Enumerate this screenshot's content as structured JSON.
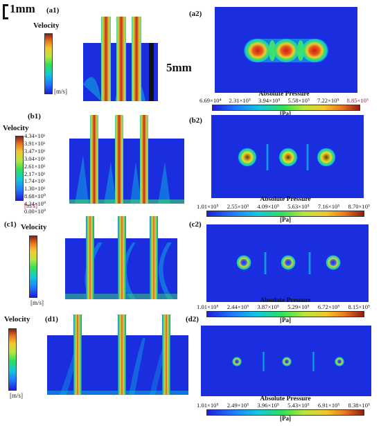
{
  "scale": {
    "bar_label": "1mm",
    "dimension_label": "5mm"
  },
  "rows": [
    {
      "left_label": "(a1)",
      "right_label": "(a2)",
      "velocity_title": "Velocity",
      "velocity_unit": "[m/s]",
      "velocity_ticks": [],
      "pressure_title": "Absolute Pressure",
      "pressure_unit": "[Pa]",
      "pressure_ticks": [
        "6.69×10⁴",
        "2.31×10⁵",
        "3.94×10⁵",
        "5.58×10⁵",
        "7.22×10⁵",
        "8.85×10⁵"
      ]
    },
    {
      "left_label": "(b1)",
      "right_label": "(b2)",
      "velocity_title": "Velocity",
      "velocity_unit": "[m/s]",
      "velocity_ticks": [
        "4.34×10¹",
        "3.91×10¹",
        "3.47×10¹",
        "3.04×10¹",
        "2.61×10¹",
        "2.17×10¹",
        "1.74×10¹",
        "1.30×10¹",
        "8.68×10⁰",
        "4.34×10⁰",
        "0.00×10⁰"
      ],
      "pressure_title": "Absolute Pressure",
      "pressure_unit": "[Pa]",
      "pressure_ticks": [
        "1.01×10⁵",
        "2.55×10⁵",
        "4.09×10⁵",
        "5.63×10⁵",
        "7.16×10⁵",
        "8.70×10⁵"
      ]
    },
    {
      "left_label": "(c1)",
      "right_label": "(c2)",
      "velocity_title": "Velocity",
      "velocity_unit": "[m/s]",
      "velocity_ticks": [],
      "pressure_title": "Absolute Pressure",
      "pressure_unit": "[Pa]",
      "pressure_ticks": [
        "1.01×10⁵",
        "2.44×10⁵",
        "3.87×10⁵",
        "5.29×10⁵",
        "6.72×10⁵",
        "8.15×10⁵"
      ]
    },
    {
      "left_label": "(d1)",
      "right_label": "(d2)",
      "velocity_title": "Velocity",
      "velocity_unit": "[m/s]",
      "velocity_ticks": [],
      "pressure_title": "Absolute Pressure",
      "pressure_unit": "[Pa]",
      "pressure_ticks": [
        "1.01×10⁵",
        "2.49×10⁵",
        "3.96×10⁵",
        "5.43×10⁵",
        "6.91×10⁵",
        "8.38×10⁵"
      ]
    }
  ],
  "colors": {
    "field_blue": "#1a2ee0",
    "jet_core": "#d8c030",
    "hot": "#c81e14"
  }
}
